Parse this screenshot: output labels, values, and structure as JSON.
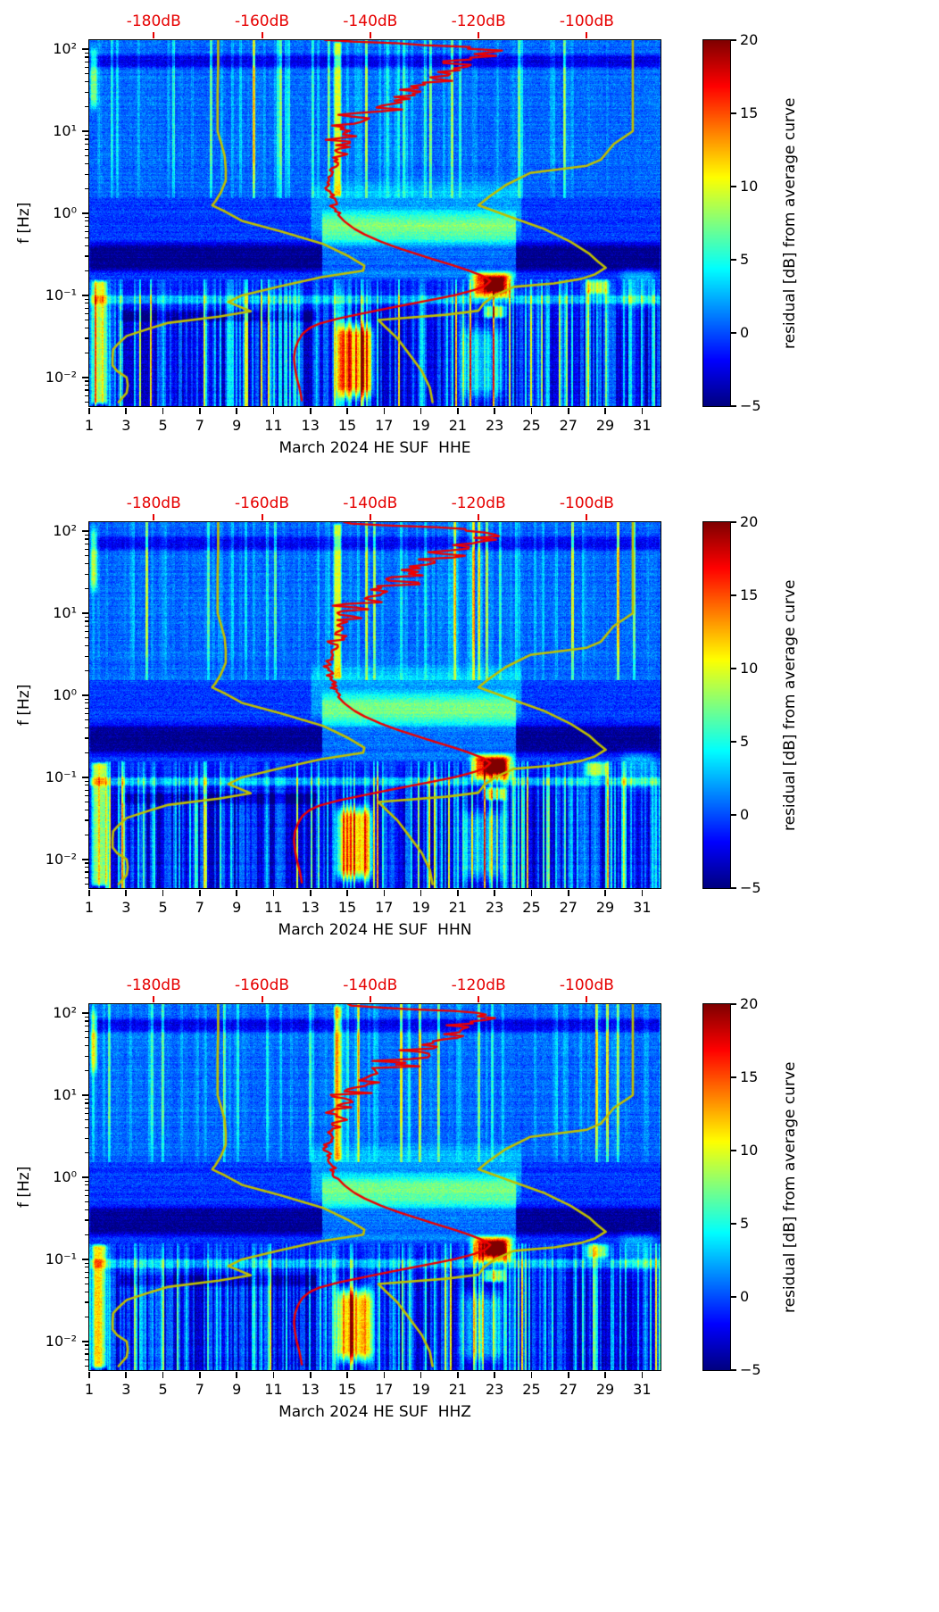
{
  "chart_data": {
    "type": "heatmap",
    "subtype": "seismic-noise-spectrogram-residual",
    "grid": false,
    "panels": [
      {
        "channel": "HHE",
        "xlabel": "March 2024 HE SUF  HHE"
      },
      {
        "channel": "HHN",
        "xlabel": "March 2024 HE SUF  HHN"
      },
      {
        "channel": "HHZ",
        "xlabel": "March 2024 HE SUF  HHZ"
      }
    ],
    "x_axis": {
      "range_days": [
        1,
        32
      ],
      "tick_labels": [
        "1",
        "3",
        "5",
        "7",
        "9",
        "11",
        "13",
        "15",
        "17",
        "19",
        "21",
        "23",
        "25",
        "27",
        "29",
        "31"
      ],
      "tick_values": [
        1,
        3,
        5,
        7,
        9,
        11,
        13,
        15,
        17,
        19,
        21,
        23,
        25,
        27,
        29,
        31
      ]
    },
    "y_axis": {
      "label": "f [Hz]",
      "scale": "log",
      "range_hz": [
        0.00447,
        129
      ],
      "tick_labels": [
        "10²",
        "10¹",
        "10⁰",
        "10⁻¹",
        "10⁻²"
      ],
      "tick_values_hz": [
        100,
        10,
        1,
        0.1,
        0.01
      ]
    },
    "top_axis": {
      "unit": "dB",
      "color": "#e60000",
      "tick_labels": [
        "-180dB",
        "-160dB",
        "-140dB",
        "-120dB",
        "-100dB"
      ],
      "tick_values_db": [
        -180,
        -160,
        -140,
        -120,
        -100
      ],
      "day_intercept": 57.375,
      "day_per_db": 0.29375
    },
    "colorbar": {
      "label": "residual [dB] from average curve",
      "range": [
        -5,
        20
      ],
      "tick_labels": [
        "20",
        "15",
        "10",
        "5",
        "0",
        "−5"
      ],
      "tick_values": [
        20,
        15,
        10,
        5,
        0,
        -5
      ],
      "colormap": "jet"
    },
    "overlays": [
      {
        "name": "noise-model-low-curve",
        "color": "#bfbf00",
        "line_width": 2.6,
        "jitter_high_freq": false,
        "points_f_db": [
          [
            130,
            -168.1
          ],
          [
            60,
            -168.1
          ],
          [
            30,
            -168.2
          ],
          [
            15,
            -168.2
          ],
          [
            10,
            -168.2
          ],
          [
            7,
            -167.5
          ],
          [
            5,
            -166.9
          ],
          [
            3.5,
            -166.7
          ],
          [
            2.5,
            -166.7
          ],
          [
            1.8,
            -167.6
          ],
          [
            1.4,
            -168.6
          ],
          [
            1.25,
            -169.2
          ],
          [
            1.05,
            -166.8
          ],
          [
            0.81,
            -163.7
          ],
          [
            0.6,
            -156.5
          ],
          [
            0.42,
            -148.6
          ],
          [
            0.3,
            -144
          ],
          [
            0.23,
            -141.1
          ],
          [
            0.2,
            -141.3
          ],
          [
            0.167,
            -149
          ],
          [
            0.13,
            -156.5
          ],
          [
            0.1,
            -163.7
          ],
          [
            0.083,
            -166.2
          ],
          [
            0.064,
            -162.1
          ],
          [
            0.055,
            -168
          ],
          [
            0.046,
            -177.5
          ],
          [
            0.04,
            -180.5
          ],
          [
            0.032,
            -185
          ],
          [
            0.026,
            -186.5
          ],
          [
            0.022,
            -187.5
          ],
          [
            0.018,
            -187.6
          ],
          [
            0.014,
            -187.6
          ],
          [
            0.012,
            -186.8
          ],
          [
            0.01,
            -185
          ],
          [
            0.008,
            -184.8
          ],
          [
            0.0065,
            -185
          ],
          [
            0.005,
            -186.5
          ]
        ]
      },
      {
        "name": "noise-model-high-curve",
        "color": "#bfbf00",
        "line_width": 2.6,
        "jitter_high_freq": false,
        "points_f_db": [
          [
            130,
            -91.5
          ],
          [
            40,
            -91.5
          ],
          [
            15,
            -91.5
          ],
          [
            10,
            -91.5
          ],
          [
            7,
            -95
          ],
          [
            4.5,
            -97.4
          ],
          [
            3.8,
            -100
          ],
          [
            3.1,
            -110.5
          ],
          [
            2.2,
            -115
          ],
          [
            1.6,
            -118
          ],
          [
            1.25,
            -120
          ],
          [
            0.9,
            -114
          ],
          [
            0.65,
            -108
          ],
          [
            0.45,
            -103
          ],
          [
            0.32,
            -99.5
          ],
          [
            0.26,
            -98
          ],
          [
            0.217,
            -96.5
          ],
          [
            0.18,
            -98.5
          ],
          [
            0.159,
            -101
          ],
          [
            0.14,
            -106
          ],
          [
            0.127,
            -113.5
          ],
          [
            0.1,
            -117
          ],
          [
            0.08,
            -119
          ],
          [
            0.065,
            -120
          ],
          [
            0.058,
            -126
          ],
          [
            0.05,
            -138.5
          ],
          [
            0.04,
            -137
          ],
          [
            0.03,
            -135
          ],
          [
            0.02,
            -133
          ],
          [
            0.012,
            -130.5
          ],
          [
            0.0075,
            -129
          ],
          [
            0.005,
            -128.5
          ]
        ]
      },
      {
        "name": "station-average-psd-curve",
        "color": "#ee0000",
        "line_width": 2.4,
        "jitter_high_freq": true,
        "points_f_db": [
          [
            130,
            -147
          ],
          [
            120,
            -140
          ],
          [
            110,
            -128
          ],
          [
            100,
            -118
          ],
          [
            90,
            -117
          ],
          [
            80,
            -119.5
          ],
          [
            70,
            -124
          ],
          [
            60,
            -122
          ],
          [
            55,
            -127
          ],
          [
            50,
            -124
          ],
          [
            45,
            -131
          ],
          [
            40,
            -127
          ],
          [
            35,
            -134
          ],
          [
            30,
            -130
          ],
          [
            26,
            -137
          ],
          [
            23,
            -133
          ],
          [
            20,
            -140
          ],
          [
            18,
            -136
          ],
          [
            16,
            -143
          ],
          [
            14,
            -139
          ],
          [
            12,
            -145
          ],
          [
            11,
            -141
          ],
          [
            10,
            -146
          ],
          [
            9,
            -142
          ],
          [
            8,
            -147
          ],
          [
            7,
            -144
          ],
          [
            6,
            -147
          ],
          [
            5,
            -145
          ],
          [
            4.5,
            -147
          ],
          [
            4,
            -146
          ],
          [
            3.5,
            -147.5
          ],
          [
            3,
            -147
          ],
          [
            2.5,
            -148
          ],
          [
            2,
            -147.8
          ],
          [
            1.6,
            -147.2
          ],
          [
            1.3,
            -146.8
          ],
          [
            1,
            -146.2
          ],
          [
            0.8,
            -144.8
          ],
          [
            0.65,
            -143
          ],
          [
            0.55,
            -141
          ],
          [
            0.45,
            -138
          ],
          [
            0.38,
            -135
          ],
          [
            0.32,
            -131.5
          ],
          [
            0.27,
            -128
          ],
          [
            0.23,
            -124.5
          ],
          [
            0.2,
            -121.8
          ],
          [
            0.17,
            -119
          ],
          [
            0.15,
            -117.8
          ],
          [
            0.13,
            -118.8
          ],
          [
            0.115,
            -121
          ],
          [
            0.1,
            -124.5
          ],
          [
            0.09,
            -128
          ],
          [
            0.08,
            -132
          ],
          [
            0.07,
            -136.5
          ],
          [
            0.06,
            -141.5
          ],
          [
            0.052,
            -146
          ],
          [
            0.045,
            -149.5
          ],
          [
            0.04,
            -151.2
          ],
          [
            0.034,
            -152.5
          ],
          [
            0.028,
            -153.3
          ],
          [
            0.022,
            -153.9
          ],
          [
            0.017,
            -154.1
          ],
          [
            0.013,
            -153.9
          ],
          [
            0.01,
            -153.6
          ],
          [
            0.0075,
            -153.1
          ],
          [
            0.006,
            -152.8
          ],
          [
            0.005,
            -152.6
          ]
        ]
      }
    ],
    "features": [
      {
        "name": "quiet-band",
        "day": [
          1,
          32
        ],
        "f": [
          0.17,
          0.5
        ],
        "residual_db": -4.2
      },
      {
        "name": "storm-band-brightening",
        "day": [
          13.6,
          24.2
        ],
        "f": [
          0.14,
          1.3
        ],
        "residual_db": 5.5
      },
      {
        "name": "storm-mid-wash",
        "day": [
          13,
          24.5
        ],
        "f": [
          0.4,
          3
        ],
        "residual_db": 2.5
      },
      {
        "name": "primary-microseism-hotspot",
        "day": [
          21.4,
          24.3
        ],
        "f": [
          0.085,
          0.21
        ],
        "residual_db": 17
      },
      {
        "name": "hotspot-core",
        "day": [
          22.3,
          23.7
        ],
        "f": [
          0.105,
          0.175
        ],
        "residual_db": 8
      },
      {
        "name": "secondary-hotspot",
        "day": [
          22.2,
          23.8
        ],
        "f": [
          0.05,
          0.08
        ],
        "residual_db": 9
      },
      {
        "name": "microseism-line",
        "day": [
          1,
          32
        ],
        "f": [
          0.075,
          0.105
        ],
        "residual_db": 4
      },
      {
        "name": "dark-row-low",
        "day": [
          2.6,
          13.4
        ],
        "f": [
          0.045,
          0.068
        ],
        "residual_db": -2.5
      },
      {
        "name": "blob-day-28",
        "day": [
          27.7,
          29.4
        ],
        "f": [
          0.095,
          0.165
        ],
        "residual_db": 9
      },
      {
        "name": "low-f-storm-columns",
        "day": [
          14.1,
          16.7
        ],
        "f": [
          0.0045,
          0.055
        ],
        "residual_db": 14
      },
      {
        "name": "low-f-columns-day-22",
        "day": [
          20.8,
          23.9
        ],
        "f": [
          0.0045,
          0.05
        ],
        "residual_db": 5
      },
      {
        "name": "left-edge-low-f",
        "day": [
          1,
          2.1
        ],
        "f": [
          0.0045,
          0.16
        ],
        "residual_db": 11
      },
      {
        "name": "left-edge-high-f",
        "day": [
          1,
          1.5
        ],
        "f": [
          15,
          130
        ],
        "residual_db": 7
      },
      {
        "name": "bright-column-day-14",
        "day": [
          14.2,
          14.75
        ],
        "f": [
          1.5,
          130
        ],
        "residual_db": 9
      },
      {
        "name": "dark-stripe-high-f",
        "day": [
          1,
          32
        ],
        "f": [
          55,
          92
        ],
        "residual_db": -3
      },
      {
        "name": "right-edge-wash",
        "day": [
          29.5,
          32
        ],
        "f": [
          0.06,
          0.25
        ],
        "residual_db": 3
      }
    ]
  }
}
